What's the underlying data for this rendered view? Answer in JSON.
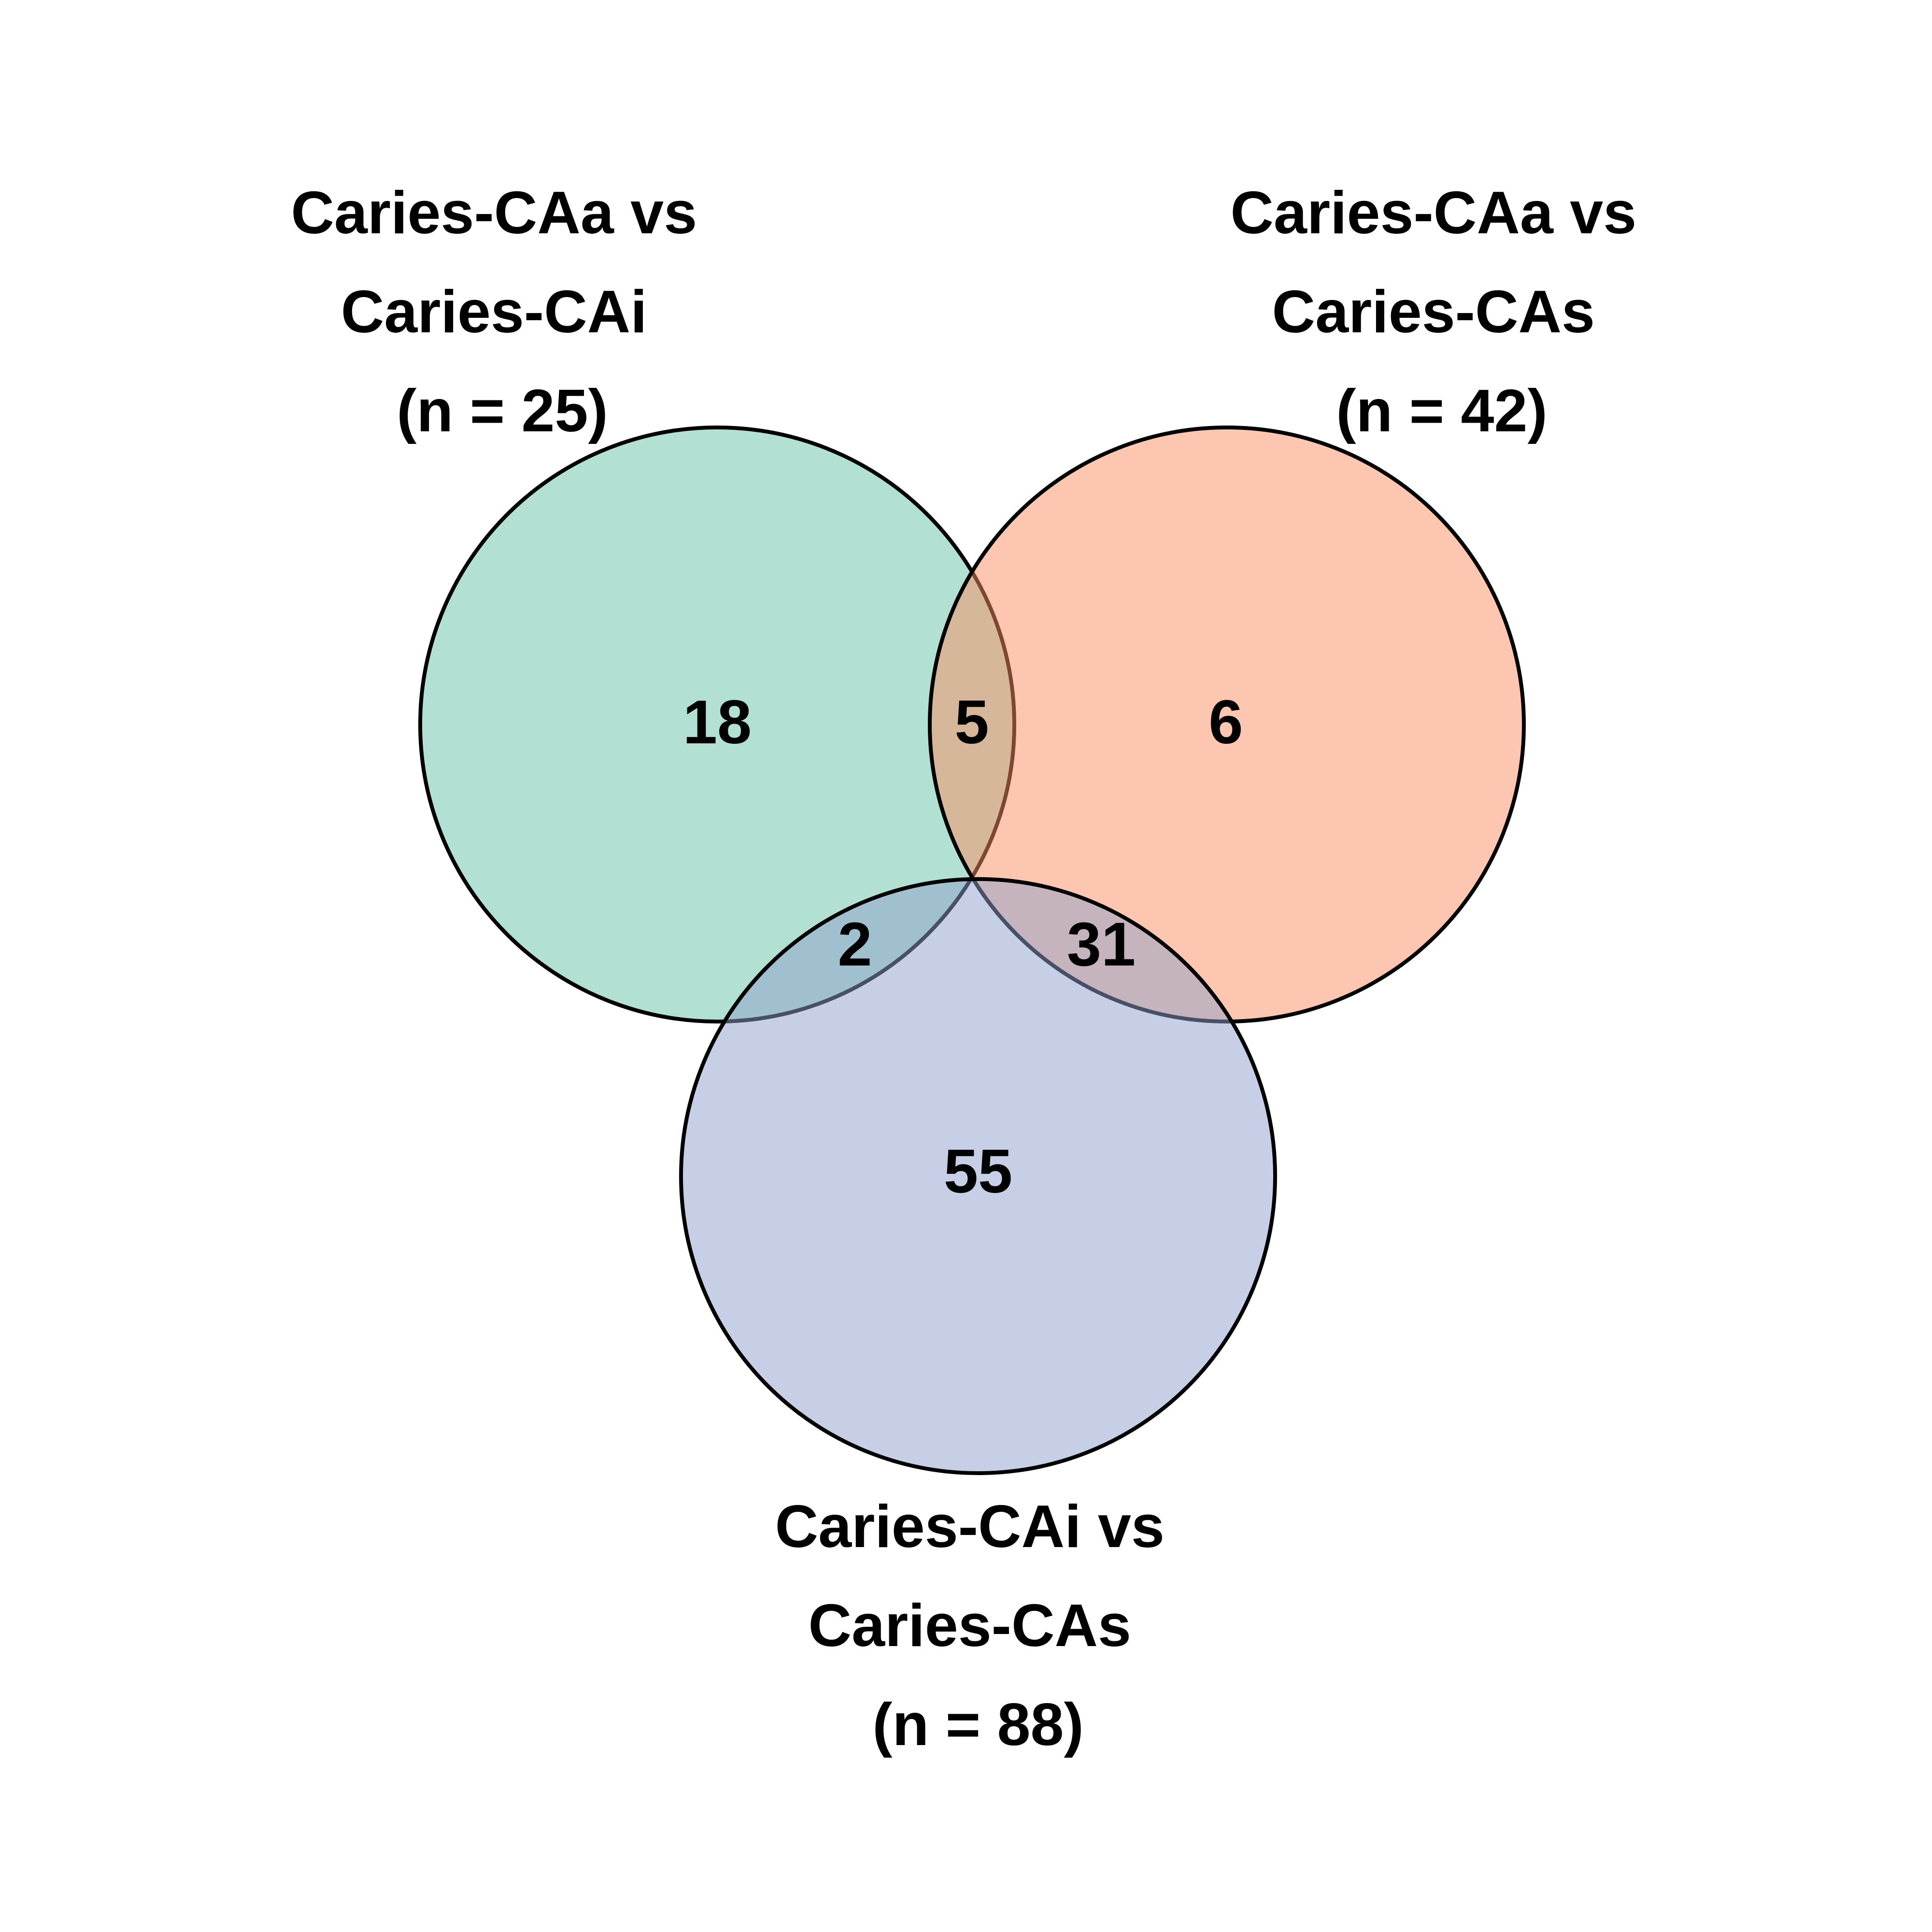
{
  "sets": [
    {
      "id": "a",
      "label_lines": [
        "Caries-CAa vs",
        "Caries-CAi",
        "(n = 25)"
      ],
      "color": "#66c2a5"
    },
    {
      "id": "b",
      "label_lines": [
        "Caries-CAa vs",
        "Caries-CAs",
        "(n = 42)"
      ],
      "color": "#fc8d62"
    },
    {
      "id": "c",
      "label_lines": [
        "Caries-CAi vs",
        "Caries-CAs",
        "(n = 88)"
      ],
      "color": "#8da0cb"
    }
  ],
  "regions": {
    "a_only": "18",
    "a_b": "5",
    "b_only": "6",
    "a_c": "2",
    "b_c": "31",
    "c_only": "55"
  }
}
